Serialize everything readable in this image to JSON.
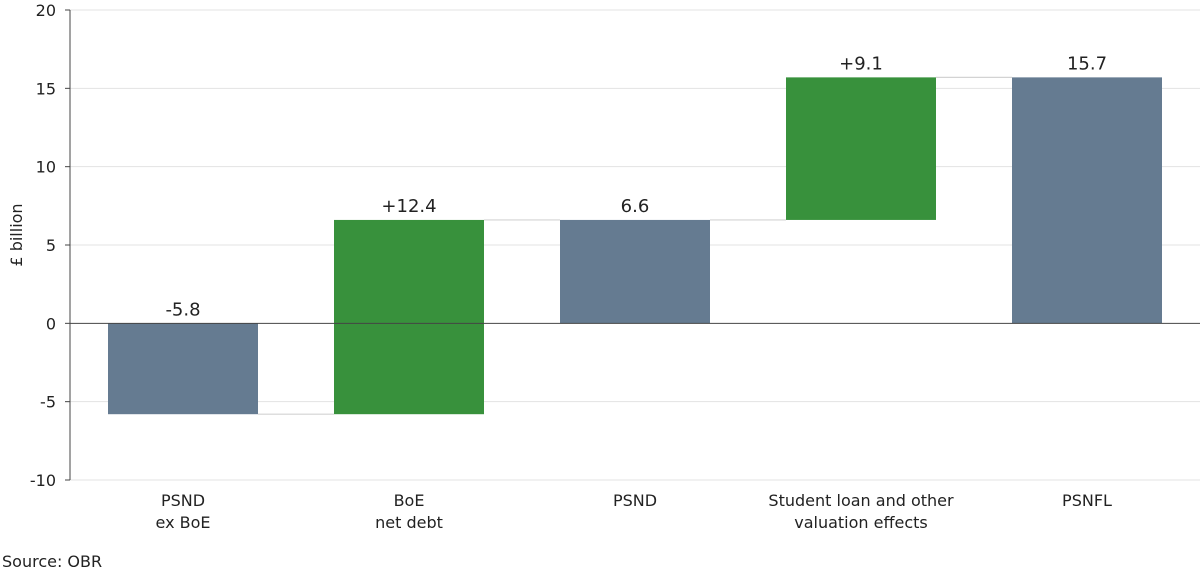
{
  "chart_data": {
    "type": "bar",
    "subtype": "waterfall",
    "ylabel": "£ billion",
    "ylim": [
      -10,
      20
    ],
    "yticks": [
      -10,
      -5,
      0,
      5,
      10,
      15,
      20
    ],
    "grid": true,
    "categories": [
      [
        "PSND",
        "ex BoE"
      ],
      [
        "BoE",
        "net debt"
      ],
      [
        "PSND"
      ],
      [
        "Student loan and other",
        "valuation effects"
      ],
      [
        "PSNFL"
      ]
    ],
    "bars": [
      {
        "kind": "total",
        "base": 0,
        "value": -5.8,
        "label": "-5.8"
      },
      {
        "kind": "change",
        "base": -5.8,
        "value": 12.4,
        "label": "+12.4"
      },
      {
        "kind": "total",
        "base": 0,
        "value": 6.6,
        "label": "6.6"
      },
      {
        "kind": "change",
        "base": 6.6,
        "value": 9.1,
        "label": "+9.1"
      },
      {
        "kind": "total",
        "base": 0,
        "value": 15.7,
        "label": "15.7"
      }
    ],
    "colors": {
      "total": "#657b91",
      "change": "#38913c",
      "grid": "#e3e3e3",
      "connector": "#d3d3d3",
      "axis": "#444444"
    }
  },
  "source": "Source: OBR"
}
